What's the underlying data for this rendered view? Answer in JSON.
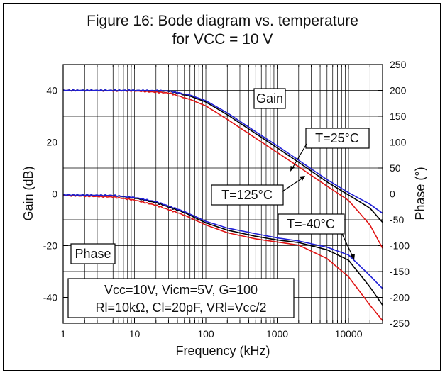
{
  "chart_data": {
    "type": "line",
    "title_line1": "Figure 16: Bode diagram vs. temperature",
    "title_line2": "for VCC = 10 V",
    "xlabel": "Frequency (kHz)",
    "ylabel_left": "Gain (dB)",
    "ylabel_right": "Phase (°)",
    "x_scale": "log",
    "xlim": [
      1,
      30000
    ],
    "ylim_left": [
      -50,
      50
    ],
    "ylim_right": [
      -250,
      250
    ],
    "x_ticks": [
      {
        "v": 1,
        "label": "1"
      },
      {
        "v": 10,
        "label": "10"
      },
      {
        "v": 100,
        "label": "100"
      },
      {
        "v": 1000,
        "label": "1000"
      },
      {
        "v": 10000,
        "label": "10000"
      }
    ],
    "y_ticks_left": [
      {
        "v": 40,
        "label": "40"
      },
      {
        "v": 20,
        "label": "20"
      },
      {
        "v": 0,
        "label": "0"
      },
      {
        "v": -20,
        "label": "-20"
      },
      {
        "v": -40,
        "label": "-40"
      }
    ],
    "y_ticks_right": [
      {
        "v": 250,
        "label": "250"
      },
      {
        "v": 200,
        "label": "200"
      },
      {
        "v": 150,
        "label": "150"
      },
      {
        "v": 100,
        "label": "100"
      },
      {
        "v": 50,
        "label": "50"
      },
      {
        "v": 0,
        "label": "0"
      },
      {
        "v": -50,
        "label": "-50"
      },
      {
        "v": -100,
        "label": "-100"
      },
      {
        "v": -150,
        "label": "-150"
      },
      {
        "v": -200,
        "label": "-200"
      },
      {
        "v": -250,
        "label": "-250"
      }
    ],
    "grid": true,
    "colors": {
      "blue": "#1f1fd6",
      "black": "#000000",
      "red": "#e01414"
    },
    "annotations": {
      "gain": "Gain",
      "phase": "Phase",
      "t25": "T=25°C",
      "t125": "T=125°C",
      "tm40": "T=-40°C",
      "cond1": "Vcc=10V, Vicm=5V, G=100",
      "cond2": "Rl=10kΩ, Cl=20pF,  VRl=Vcc/2"
    },
    "series": [
      {
        "kind": "gain",
        "color": "blue",
        "x": [
          1,
          10,
          30,
          60,
          100,
          200,
          500,
          1000,
          2000,
          5000,
          10000,
          20000,
          30000
        ],
        "y": [
          40,
          40,
          39.8,
          38.2,
          36.0,
          31.3,
          24.0,
          18.6,
          13.0,
          5.5,
          0.5,
          -4.0,
          -7.5
        ]
      },
      {
        "kind": "gain",
        "color": "black",
        "x": [
          1,
          10,
          30,
          60,
          100,
          200,
          500,
          1000,
          2000,
          5000,
          10000,
          20000,
          30000
        ],
        "y": [
          40,
          40,
          39.7,
          37.8,
          35.5,
          30.6,
          23.3,
          17.8,
          12.2,
          4.6,
          -0.4,
          -5.5,
          -11.0
        ]
      },
      {
        "kind": "gain",
        "color": "red",
        "x": [
          1,
          10,
          30,
          60,
          100,
          200,
          500,
          1000,
          2000,
          5000,
          10000,
          20000,
          30000
        ],
        "y": [
          40,
          39.8,
          39.0,
          36.5,
          34.0,
          28.8,
          21.5,
          16.0,
          10.5,
          3.0,
          -2.5,
          -12.0,
          -21.0
        ]
      },
      {
        "kind": "phase",
        "color": "blue",
        "x": [
          1,
          5,
          10,
          20,
          50,
          100,
          200,
          500,
          1000,
          2000,
          5000,
          10000,
          20000,
          30000
        ],
        "y": [
          -2,
          -3,
          -7,
          -15,
          -34,
          -53,
          -66,
          -77,
          -85,
          -91,
          -103,
          -118,
          -158,
          -183
        ]
      },
      {
        "kind": "phase",
        "color": "black",
        "x": [
          1,
          5,
          10,
          20,
          50,
          100,
          200,
          500,
          1000,
          2000,
          5000,
          10000,
          20000,
          30000
        ],
        "y": [
          -2,
          -3,
          -8,
          -17,
          -36,
          -56,
          -70,
          -82,
          -89,
          -94,
          -108,
          -128,
          -180,
          -215
        ]
      },
      {
        "kind": "phase",
        "color": "red",
        "x": [
          1,
          5,
          10,
          20,
          50,
          100,
          200,
          500,
          1000,
          2000,
          5000,
          10000,
          20000,
          30000
        ],
        "y": [
          -3,
          -6,
          -12,
          -22,
          -41,
          -60,
          -75,
          -87,
          -93,
          -99,
          -125,
          -160,
          -215,
          -245
        ]
      }
    ]
  }
}
